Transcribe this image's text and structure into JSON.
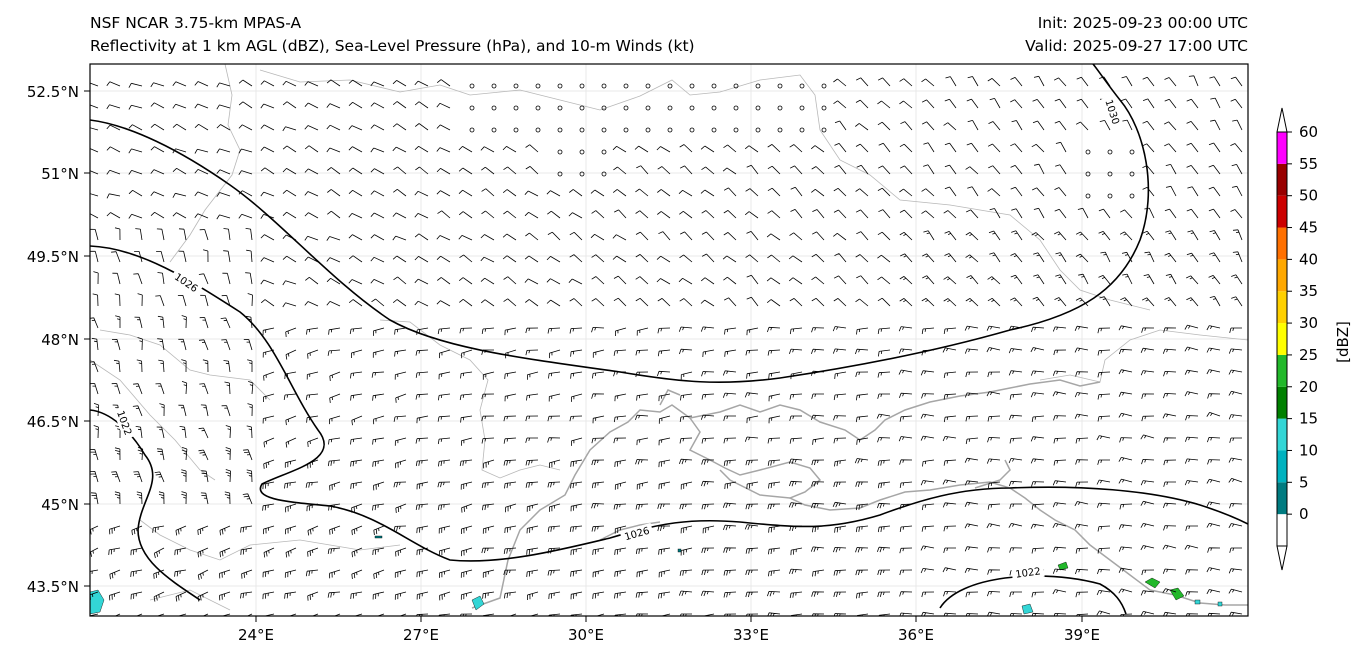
{
  "title": {
    "line1": "NSF NCAR 3.75-km MPAS-A",
    "line2": "Reflectivity at 1 km AGL (dBZ), Sea-Level Pressure (hPa), and 10-m Winds (kt)",
    "init": "Init: 2025-09-23 00:00 UTC",
    "valid": "Valid: 2025-09-27 17:00 UTC"
  },
  "lat_ticks": [
    "52.5°N",
    "51°N",
    "49.5°N",
    "48°N",
    "46.5°N",
    "45°N",
    "43.5°N"
  ],
  "lon_ticks": [
    "24°E",
    "27°E",
    "30°E",
    "33°E",
    "36°E",
    "39°E"
  ],
  "isobar_labels": [
    "1026",
    "1022",
    "1026",
    "1030",
    "1022"
  ],
  "colorbar": {
    "label": "[dBZ]",
    "ticks": [
      "0",
      "5",
      "10",
      "15",
      "20",
      "25",
      "30",
      "35",
      "40",
      "45",
      "50",
      "55",
      "60"
    ],
    "colors": [
      "#007b80",
      "#00b2bf",
      "#33d6d6",
      "#008000",
      "#22b82a",
      "#ffff00",
      "#ffd000",
      "#ffa800",
      "#ff7000",
      "#cc0000",
      "#990000",
      "#ff00ff",
      "#ffe4d6"
    ]
  },
  "colors": {
    "coast": "#a6a6a6",
    "isobar": "#000000",
    "barb": "#000000"
  }
}
